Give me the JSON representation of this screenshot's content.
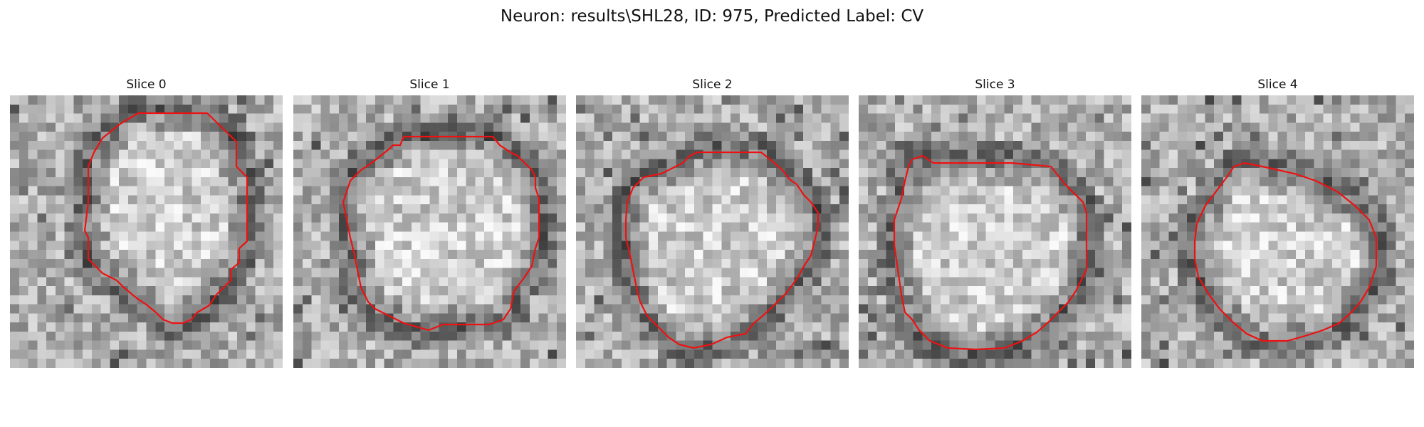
{
  "figure": {
    "title": "Neuron: results\\SHL28, ID: 975, Predicted Label: CV",
    "contour_color": "#ee1111",
    "panels": [
      {
        "title": "Slice 0"
      },
      {
        "title": "Slice 1"
      },
      {
        "title": "Slice 2"
      },
      {
        "title": "Slice 3"
      },
      {
        "title": "Slice 4"
      }
    ]
  }
}
